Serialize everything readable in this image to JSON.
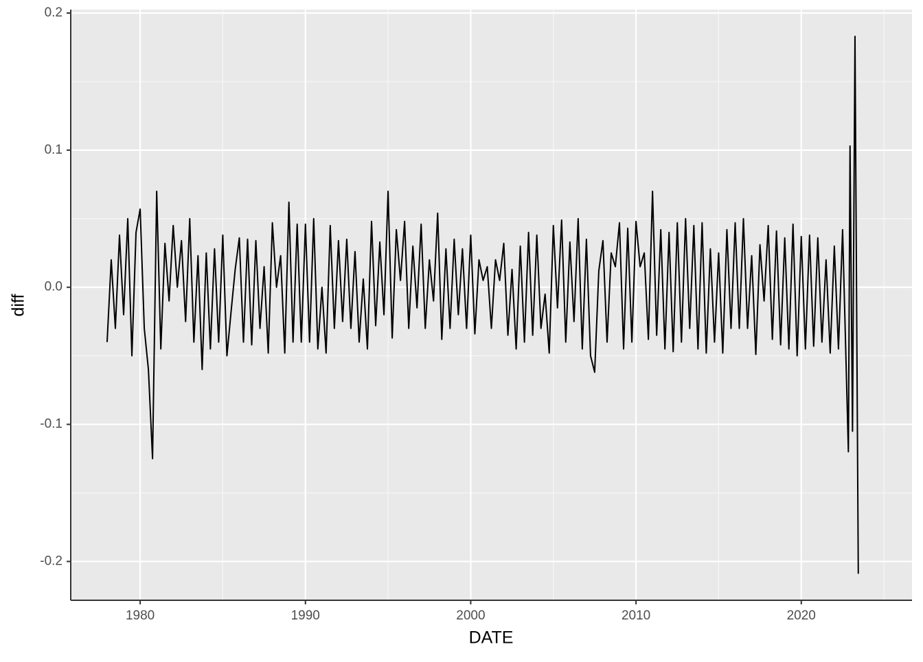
{
  "chart_data": {
    "type": "line",
    "x_label": "DATE",
    "y_label": "diff",
    "color": "#000000",
    "x": [
      1978,
      1978.25,
      1978.5,
      1978.75,
      1979,
      1979.25,
      1979.5,
      1979.75,
      1980,
      1980.25,
      1980.5,
      1980.75,
      1981,
      1981.25,
      1981.5,
      1981.75,
      1982,
      1982.25,
      1982.5,
      1982.75,
      1983,
      1983.25,
      1983.5,
      1983.75,
      1984,
      1984.25,
      1984.5,
      1984.75,
      1985,
      1985.25,
      1985.5,
      1985.75,
      1986,
      1986.25,
      1986.5,
      1986.75,
      1987,
      1987.25,
      1987.5,
      1987.75,
      1988,
      1988.25,
      1988.5,
      1988.75,
      1989,
      1989.25,
      1989.5,
      1989.75,
      1990,
      1990.25,
      1990.5,
      1990.75,
      1991,
      1991.25,
      1991.5,
      1991.75,
      1992,
      1992.25,
      1992.5,
      1992.75,
      1993,
      1993.25,
      1993.5,
      1993.75,
      1994,
      1994.25,
      1994.5,
      1994.75,
      1995,
      1995.25,
      1995.5,
      1995.75,
      1996,
      1996.25,
      1996.5,
      1996.75,
      1997,
      1997.25,
      1997.5,
      1997.75,
      1998,
      1998.25,
      1998.5,
      1998.75,
      1999,
      1999.25,
      1999.5,
      1999.75,
      2000,
      2000.25,
      2000.5,
      2000.75,
      2001,
      2001.25,
      2001.5,
      2001.75,
      2002,
      2002.25,
      2002.5,
      2002.75,
      2003,
      2003.25,
      2003.5,
      2003.75,
      2004,
      2004.25,
      2004.5,
      2004.75,
      2005,
      2005.25,
      2005.5,
      2005.75,
      2006,
      2006.25,
      2006.5,
      2006.75,
      2007,
      2007.25,
      2007.5,
      2007.75,
      2008,
      2008.25,
      2008.5,
      2008.75,
      2009,
      2009.25,
      2009.5,
      2009.75,
      2010,
      2010.25,
      2010.5,
      2010.75,
      2011,
      2011.25,
      2011.5,
      2011.75,
      2012,
      2012.25,
      2012.5,
      2012.75,
      2013,
      2013.25,
      2013.5,
      2013.75,
      2014,
      2014.25,
      2014.5,
      2014.75,
      2015,
      2015.25,
      2015.5,
      2015.75,
      2016,
      2016.25,
      2016.5,
      2016.75,
      2017,
      2017.25,
      2017.5,
      2017.75,
      2018,
      2018.25,
      2018.5,
      2018.75,
      2019,
      2019.25,
      2019.5,
      2019.75,
      2020,
      2020.25,
      2020.5,
      2020.75,
      2021,
      2021.25,
      2021.5,
      2021.75,
      2022,
      2022.25,
      2022.5,
      2022.85,
      2022.95,
      2023.1,
      2023.25,
      2023.45
    ],
    "values": [
      -0.04,
      0.02,
      -0.03,
      0.038,
      -0.02,
      0.05,
      -0.05,
      0.04,
      0.057,
      -0.03,
      -0.06,
      -0.125,
      0.07,
      -0.045,
      0.032,
      -0.01,
      0.045,
      0.0,
      0.034,
      -0.025,
      0.05,
      -0.04,
      0.023,
      -0.06,
      0.025,
      -0.045,
      0.028,
      -0.04,
      0.038,
      -0.05,
      -0.018,
      0.013,
      0.036,
      -0.04,
      0.035,
      -0.042,
      0.034,
      -0.03,
      0.015,
      -0.048,
      0.047,
      0.0,
      0.023,
      -0.048,
      0.062,
      -0.04,
      0.046,
      -0.04,
      0.046,
      -0.04,
      0.05,
      -0.045,
      0.0,
      -0.048,
      0.045,
      -0.03,
      0.034,
      -0.025,
      0.035,
      -0.03,
      0.026,
      -0.04,
      0.006,
      -0.045,
      0.048,
      -0.028,
      0.033,
      -0.02,
      0.07,
      -0.037,
      0.042,
      0.005,
      0.048,
      -0.03,
      0.03,
      -0.015,
      0.046,
      -0.03,
      0.02,
      -0.01,
      0.054,
      -0.038,
      0.028,
      -0.03,
      0.035,
      -0.02,
      0.028,
      -0.03,
      0.038,
      -0.034,
      0.02,
      0.005,
      0.015,
      -0.03,
      0.02,
      0.005,
      0.032,
      -0.035,
      0.013,
      -0.045,
      0.03,
      -0.04,
      0.04,
      -0.035,
      0.038,
      -0.03,
      -0.005,
      -0.048,
      0.045,
      -0.015,
      0.049,
      -0.04,
      0.033,
      -0.025,
      0.05,
      -0.045,
      0.035,
      -0.05,
      -0.062,
      0.012,
      0.034,
      -0.04,
      0.025,
      0.015,
      0.047,
      -0.045,
      0.043,
      -0.04,
      0.048,
      0.015,
      0.025,
      -0.038,
      0.07,
      -0.035,
      0.042,
      -0.045,
      0.04,
      -0.047,
      0.047,
      -0.04,
      0.05,
      -0.03,
      0.045,
      -0.045,
      0.047,
      -0.048,
      0.028,
      -0.04,
      0.025,
      -0.048,
      0.042,
      -0.03,
      0.047,
      -0.03,
      0.05,
      -0.03,
      0.023,
      -0.049,
      0.031,
      -0.01,
      0.045,
      -0.038,
      0.041,
      -0.042,
      0.036,
      -0.045,
      0.046,
      -0.05,
      0.037,
      -0.045,
      0.038,
      -0.043,
      0.036,
      -0.04,
      0.02,
      -0.048,
      0.03,
      -0.045,
      0.042,
      -0.12,
      0.103,
      -0.105,
      0.183,
      -0.209
    ],
    "xlim": [
      1975.8,
      2026.7
    ],
    "xticks": [
      1980,
      1990,
      2000,
      2010,
      2020
    ],
    "ylim": [
      -0.2283,
      0.2025
    ],
    "yticks": [
      -0.2,
      -0.1,
      0.0,
      0.1,
      0.2
    ],
    "grid": true
  }
}
